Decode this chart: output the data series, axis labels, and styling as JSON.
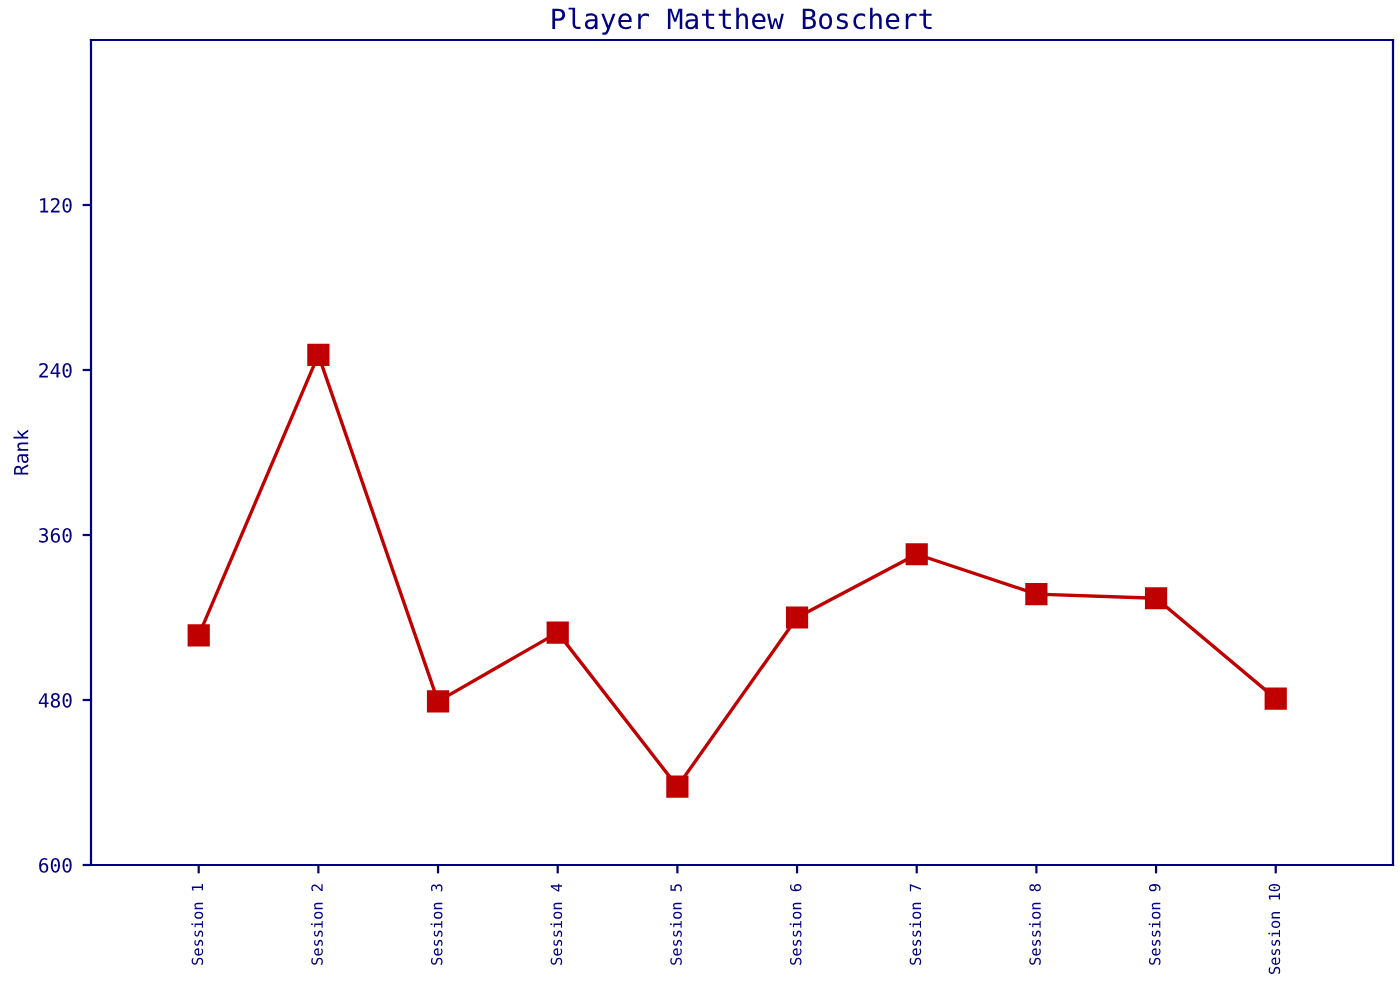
{
  "chart_data": {
    "type": "line",
    "title": "Player Matthew Boschert",
    "ylabel": "Rank",
    "categories": [
      "Session 1",
      "Session 2",
      "Session 3",
      "Session 4",
      "Session 5",
      "Session 6",
      "Session 7",
      "Session 8",
      "Session 9",
      "Session 10"
    ],
    "series": [
      {
        "color": "#c00000",
        "values": [
          433,
          229,
          481,
          431,
          543,
          420,
          374,
          403,
          406,
          479
        ]
      }
    ],
    "ylim": [
      600,
      0
    ],
    "yticks": [
      120,
      240,
      360,
      480,
      600
    ],
    "grid": false,
    "legend": false,
    "marker": "square",
    "line_style": "solid"
  }
}
